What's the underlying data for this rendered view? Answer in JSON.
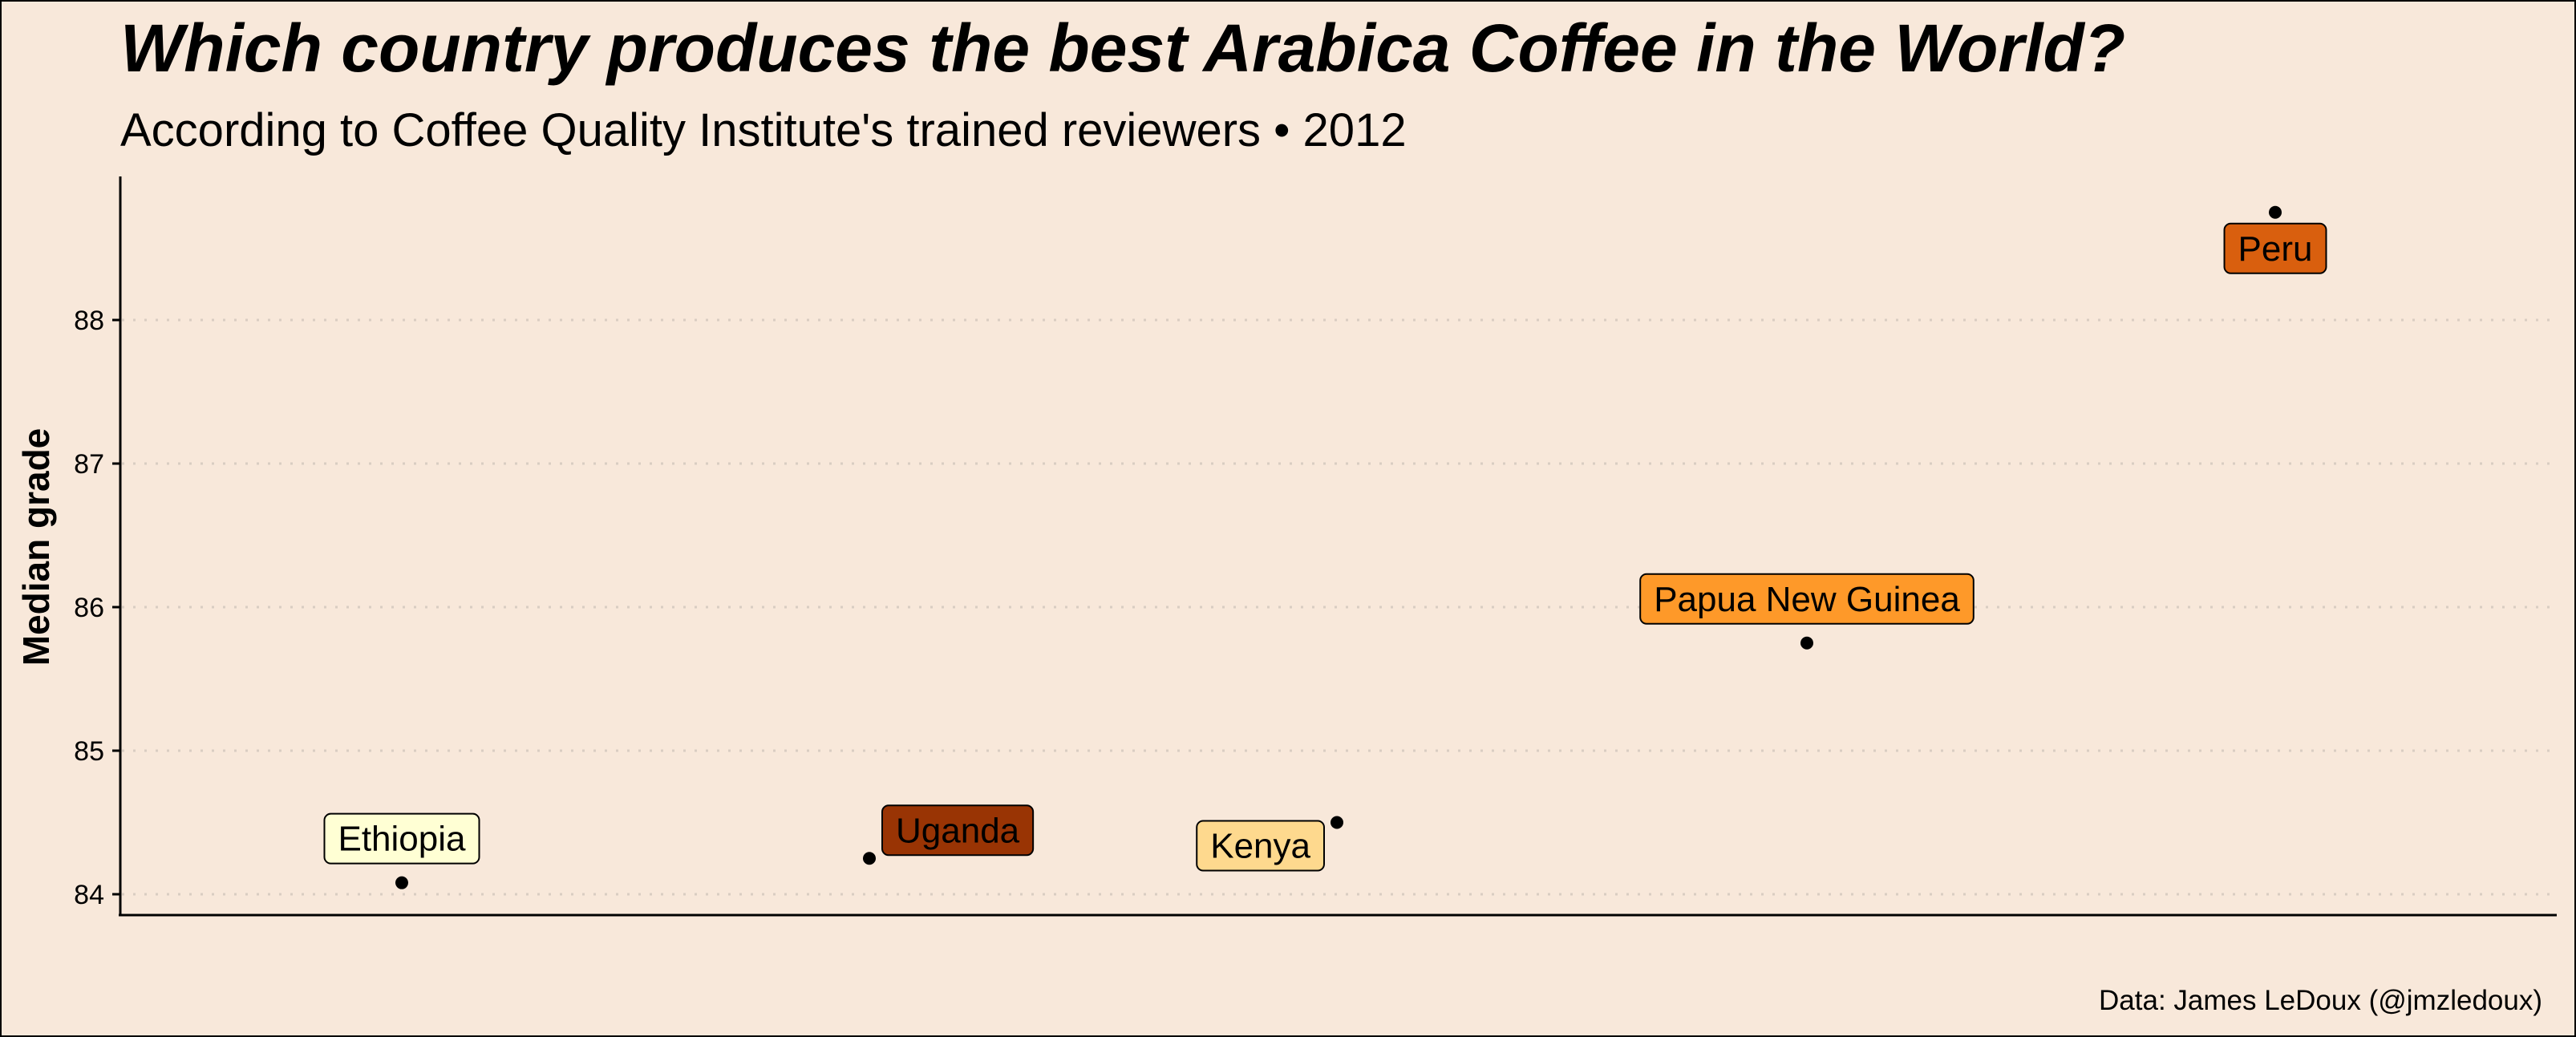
{
  "chart_data": {
    "type": "scatter",
    "title": "Which country produces the best Arabica Coffee in the World?",
    "subtitle": "According to Coffee Quality Institute's trained reviewers • 2012",
    "xlabel": "",
    "ylabel": "Median grade",
    "caption": "Data: James LeDoux (@jmzledoux)",
    "ylim": [
      83.85,
      89.0
    ],
    "yticks": [
      84,
      85,
      86,
      87,
      88
    ],
    "grid": "horizontal dotted",
    "points": [
      {
        "label": "Ethiopia",
        "y": 84.08,
        "color": "#FFFFD4",
        "label_side": "above"
      },
      {
        "label": "Uganda",
        "y": 84.25,
        "color": "#993404",
        "label_side": "upper-right"
      },
      {
        "label": "Kenya",
        "y": 84.5,
        "color": "#FED98E",
        "label_side": "lower-left"
      },
      {
        "label": "Papua New Guinea",
        "y": 85.75,
        "color": "#FE9929",
        "label_side": "above"
      },
      {
        "label": "Peru",
        "y": 88.75,
        "color": "#D95F0E",
        "label_side": "below"
      }
    ]
  }
}
